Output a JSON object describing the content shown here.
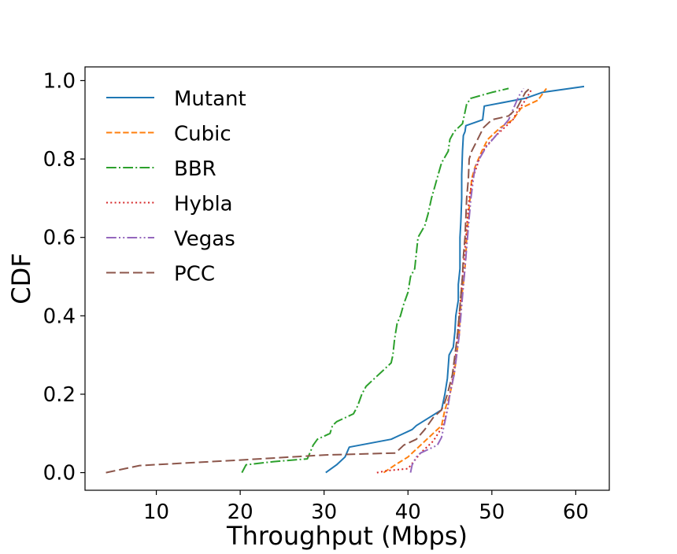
{
  "chart_data": {
    "type": "line",
    "title": "",
    "xlabel": "Throughput (Mbps)",
    "ylabel": "CDF",
    "xlim": [
      1.5,
      64
    ],
    "ylim": [
      -0.045,
      1.035
    ],
    "xticks": [
      10,
      20,
      30,
      40,
      50,
      60
    ],
    "xtick_labels": [
      "10",
      "20",
      "30",
      "40",
      "50",
      "60"
    ],
    "yticks": [
      0.0,
      0.2,
      0.4,
      0.6,
      0.8,
      1.0
    ],
    "ytick_labels": [
      "0.0",
      "0.2",
      "0.4",
      "0.6",
      "0.8",
      "1.0"
    ],
    "grid": false,
    "legend_position": "upper-left",
    "series": [
      {
        "name": "Mutant",
        "color": "#1f77b4",
        "dash": "solid",
        "points": [
          [
            30.2,
            0.0
          ],
          [
            31.5,
            0.02
          ],
          [
            32.5,
            0.04
          ],
          [
            33.0,
            0.065
          ],
          [
            38.0,
            0.085
          ],
          [
            40.5,
            0.11
          ],
          [
            41.0,
            0.12
          ],
          [
            42.5,
            0.14
          ],
          [
            44.0,
            0.16
          ],
          [
            44.4,
            0.2
          ],
          [
            44.7,
            0.24
          ],
          [
            44.9,
            0.3
          ],
          [
            45.4,
            0.32
          ],
          [
            45.6,
            0.36
          ],
          [
            45.7,
            0.4
          ],
          [
            46.0,
            0.44
          ],
          [
            46.0,
            0.48
          ],
          [
            46.2,
            0.52
          ],
          [
            46.2,
            0.56
          ],
          [
            46.2,
            0.6
          ],
          [
            46.3,
            0.64
          ],
          [
            46.4,
            0.7
          ],
          [
            46.4,
            0.76
          ],
          [
            46.5,
            0.82
          ],
          [
            46.6,
            0.86
          ],
          [
            46.8,
            0.87
          ],
          [
            46.9,
            0.885
          ],
          [
            48.9,
            0.9
          ],
          [
            49.1,
            0.935
          ],
          [
            54.0,
            0.955
          ],
          [
            56.0,
            0.97
          ],
          [
            61.0,
            0.985
          ]
        ]
      },
      {
        "name": "Cubic",
        "color": "#ff7f0e",
        "dash": "dashed",
        "points": [
          [
            37.1,
            0.0
          ],
          [
            38.5,
            0.02
          ],
          [
            40.0,
            0.04
          ],
          [
            41.0,
            0.06
          ],
          [
            42.0,
            0.08
          ],
          [
            43.0,
            0.1
          ],
          [
            44.0,
            0.12
          ],
          [
            44.4,
            0.16
          ],
          [
            45.0,
            0.2
          ],
          [
            45.5,
            0.25
          ],
          [
            45.8,
            0.3
          ],
          [
            46.1,
            0.35
          ],
          [
            46.2,
            0.4
          ],
          [
            46.4,
            0.45
          ],
          [
            46.7,
            0.5
          ],
          [
            46.9,
            0.55
          ],
          [
            47.0,
            0.6
          ],
          [
            47.2,
            0.65
          ],
          [
            47.4,
            0.7
          ],
          [
            47.6,
            0.75
          ],
          [
            48.0,
            0.78
          ],
          [
            48.8,
            0.82
          ],
          [
            49.5,
            0.85
          ],
          [
            51.0,
            0.88
          ],
          [
            52.5,
            0.9
          ],
          [
            53.5,
            0.93
          ],
          [
            55.5,
            0.95
          ],
          [
            56.5,
            0.98
          ]
        ]
      },
      {
        "name": "BBR",
        "color": "#2ca02c",
        "dash": "dashdot",
        "points": [
          [
            20.2,
            0.0
          ],
          [
            20.7,
            0.02
          ],
          [
            24.0,
            0.028
          ],
          [
            28.0,
            0.035
          ],
          [
            28.3,
            0.05
          ],
          [
            28.7,
            0.07
          ],
          [
            29.2,
            0.085
          ],
          [
            30.7,
            0.1
          ],
          [
            31.0,
            0.12
          ],
          [
            31.5,
            0.13
          ],
          [
            33.5,
            0.15
          ],
          [
            34.0,
            0.17
          ],
          [
            34.5,
            0.2
          ],
          [
            35.0,
            0.22
          ],
          [
            36.0,
            0.24
          ],
          [
            37.0,
            0.26
          ],
          [
            38.0,
            0.28
          ],
          [
            38.2,
            0.3
          ],
          [
            38.4,
            0.34
          ],
          [
            38.7,
            0.38
          ],
          [
            39.1,
            0.4
          ],
          [
            39.5,
            0.43
          ],
          [
            40.0,
            0.46
          ],
          [
            40.3,
            0.5
          ],
          [
            40.8,
            0.52
          ],
          [
            41.0,
            0.56
          ],
          [
            41.2,
            0.6
          ],
          [
            42.0,
            0.63
          ],
          [
            42.4,
            0.66
          ],
          [
            42.8,
            0.7
          ],
          [
            43.2,
            0.73
          ],
          [
            43.6,
            0.76
          ],
          [
            44.0,
            0.79
          ],
          [
            44.8,
            0.82
          ],
          [
            45.0,
            0.85
          ],
          [
            45.5,
            0.87
          ],
          [
            46.5,
            0.89
          ],
          [
            46.8,
            0.92
          ],
          [
            47.0,
            0.94
          ],
          [
            47.5,
            0.955
          ],
          [
            50.0,
            0.97
          ],
          [
            52.0,
            0.98
          ]
        ]
      },
      {
        "name": "Hybla",
        "color": "#d62728",
        "dash": "dotted",
        "points": [
          [
            36.3,
            0.0
          ],
          [
            37.5,
            0.005
          ],
          [
            40.0,
            0.01
          ],
          [
            41.5,
            0.05
          ],
          [
            43.0,
            0.08
          ],
          [
            44.2,
            0.12
          ],
          [
            44.7,
            0.16
          ],
          [
            45.0,
            0.2
          ],
          [
            45.4,
            0.25
          ],
          [
            45.7,
            0.3
          ],
          [
            45.9,
            0.35
          ],
          [
            46.1,
            0.4
          ],
          [
            46.3,
            0.45
          ],
          [
            46.5,
            0.5
          ],
          [
            46.7,
            0.55
          ],
          [
            46.9,
            0.6
          ],
          [
            47.1,
            0.65
          ],
          [
            47.3,
            0.7
          ],
          [
            47.7,
            0.75
          ],
          [
            48.2,
            0.78
          ],
          [
            48.5,
            0.8
          ],
          [
            49.2,
            0.83
          ],
          [
            50.5,
            0.86
          ],
          [
            51.5,
            0.88
          ],
          [
            52.5,
            0.9
          ],
          [
            53.0,
            0.92
          ],
          [
            54.0,
            0.95
          ],
          [
            54.8,
            0.98
          ]
        ]
      },
      {
        "name": "Vegas",
        "color": "#9467bd",
        "dash": "dashdotdot",
        "points": [
          [
            40.3,
            0.0
          ],
          [
            40.5,
            0.02
          ],
          [
            41.0,
            0.04
          ],
          [
            41.5,
            0.05
          ],
          [
            42.5,
            0.06
          ],
          [
            43.5,
            0.07
          ],
          [
            44.0,
            0.09
          ],
          [
            44.3,
            0.12
          ],
          [
            44.7,
            0.16
          ],
          [
            45.0,
            0.2
          ],
          [
            45.5,
            0.25
          ],
          [
            45.8,
            0.3
          ],
          [
            46.1,
            0.35
          ],
          [
            46.3,
            0.4
          ],
          [
            46.5,
            0.45
          ],
          [
            46.7,
            0.5
          ],
          [
            46.9,
            0.55
          ],
          [
            47.1,
            0.6
          ],
          [
            47.3,
            0.65
          ],
          [
            47.5,
            0.7
          ],
          [
            47.8,
            0.75
          ],
          [
            48.0,
            0.78
          ],
          [
            48.5,
            0.8
          ],
          [
            49.3,
            0.83
          ],
          [
            50.5,
            0.86
          ],
          [
            51.2,
            0.88
          ],
          [
            52.0,
            0.9
          ],
          [
            52.6,
            0.93
          ],
          [
            53.2,
            0.96
          ],
          [
            53.8,
            0.98
          ]
        ]
      },
      {
        "name": "PCC",
        "color": "#8c564b",
        "dash": "loosedash",
        "points": [
          [
            4.0,
            0.0
          ],
          [
            8.0,
            0.018
          ],
          [
            20.0,
            0.032
          ],
          [
            30.0,
            0.045
          ],
          [
            38.5,
            0.05
          ],
          [
            39.5,
            0.07
          ],
          [
            41.0,
            0.085
          ],
          [
            42.0,
            0.11
          ],
          [
            43.0,
            0.14
          ],
          [
            44.0,
            0.16
          ],
          [
            44.4,
            0.18
          ],
          [
            44.7,
            0.2
          ],
          [
            45.3,
            0.25
          ],
          [
            45.6,
            0.3
          ],
          [
            45.9,
            0.35
          ],
          [
            46.1,
            0.4
          ],
          [
            46.3,
            0.45
          ],
          [
            46.5,
            0.5
          ],
          [
            46.6,
            0.55
          ],
          [
            46.8,
            0.6
          ],
          [
            46.9,
            0.65
          ],
          [
            47.0,
            0.7
          ],
          [
            47.2,
            0.75
          ],
          [
            47.3,
            0.8
          ],
          [
            47.6,
            0.82
          ],
          [
            48.3,
            0.85
          ],
          [
            49.0,
            0.88
          ],
          [
            50.0,
            0.9
          ],
          [
            52.0,
            0.91
          ],
          [
            53.0,
            0.93
          ],
          [
            53.5,
            0.95
          ],
          [
            54.0,
            0.97
          ],
          [
            54.5,
            0.98
          ]
        ]
      }
    ]
  }
}
